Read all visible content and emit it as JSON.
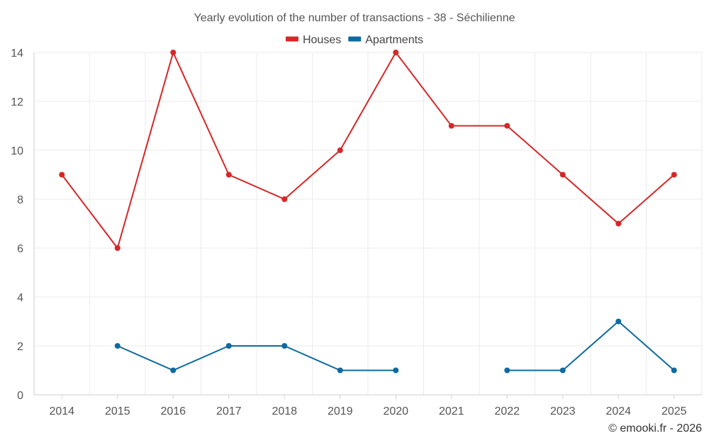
{
  "chart_data": {
    "type": "line",
    "title": "Yearly evolution of the number of transactions - 38 - Séchilienne",
    "categories": [
      "2014",
      "2015",
      "2016",
      "2017",
      "2018",
      "2019",
      "2020",
      "2021",
      "2022",
      "2023",
      "2024",
      "2025"
    ],
    "ylim": [
      0,
      14
    ],
    "yticks": [
      0,
      2,
      4,
      6,
      8,
      10,
      12,
      14
    ],
    "ytick_labels": [
      "0",
      "2",
      "4",
      "6",
      "8",
      "10",
      "12",
      "14"
    ],
    "grid": true,
    "legend_position": "top-center",
    "series": [
      {
        "name": "Houses",
        "color": "#d62728",
        "values": [
          9,
          6,
          14,
          9,
          8,
          10,
          14,
          11,
          11,
          9,
          7,
          9
        ]
      },
      {
        "name": "Apartments",
        "color": "#0f6aa0",
        "values": [
          null,
          2,
          1,
          2,
          2,
          1,
          1,
          null,
          1,
          1,
          3,
          1
        ]
      }
    ],
    "credit": "© emooki.fr - 2026"
  }
}
